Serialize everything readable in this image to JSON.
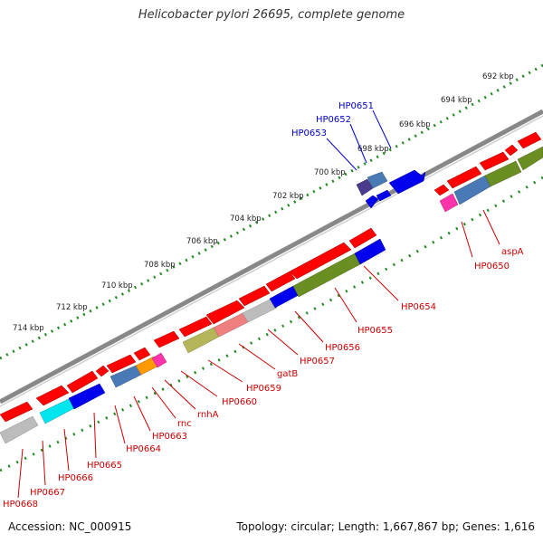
{
  "title": "Helicobacter pylori 26695, complete genome",
  "footer": {
    "accession": "Accession: NC_000915",
    "summary": "Topology: circular; Length: 1,667,867 bp; Genes: 1,616"
  },
  "colors": {
    "ruler": "#228B22",
    "forward": "#ff0000",
    "forward_label": "#cc0000",
    "reverse_label": "#0000cc",
    "backbone": "#888888"
  },
  "ruler": {
    "unit": "kbp",
    "ticks": [
      {
        "kb": 692,
        "label": "692 kbp"
      },
      {
        "kb": 694,
        "label": "694 kbp"
      },
      {
        "kb": 696,
        "label": "696 kbp"
      },
      {
        "kb": 698,
        "label": "698 kbp"
      },
      {
        "kb": 700,
        "label": "700 kbp"
      },
      {
        "kb": 702,
        "label": "702 kbp"
      },
      {
        "kb": 704,
        "label": "704 kbp"
      },
      {
        "kb": 706,
        "label": "706 kbp"
      },
      {
        "kb": 708,
        "label": "708 kbp"
      },
      {
        "kb": 710,
        "label": "710 kbp"
      },
      {
        "kb": 712,
        "label": "712 kbp"
      },
      {
        "kb": 714,
        "label": "714 kbp"
      }
    ]
  },
  "labels": [
    {
      "text": "HP0651",
      "strand": "reverse"
    },
    {
      "text": "HP0652",
      "strand": "reverse"
    },
    {
      "text": "HP0653",
      "strand": "reverse"
    },
    {
      "text": "aspA",
      "strand": "forward"
    },
    {
      "text": "HP0650",
      "strand": "forward"
    },
    {
      "text": "HP0654",
      "strand": "forward"
    },
    {
      "text": "HP0655",
      "strand": "forward"
    },
    {
      "text": "HP0656",
      "strand": "forward"
    },
    {
      "text": "HP0657",
      "strand": "forward"
    },
    {
      "text": "gatB",
      "strand": "forward"
    },
    {
      "text": "HP0659",
      "strand": "forward"
    },
    {
      "text": "HP0660",
      "strand": "forward"
    },
    {
      "text": "rnhA",
      "strand": "forward"
    },
    {
      "text": "rnc",
      "strand": "forward"
    },
    {
      "text": "HP0663",
      "strand": "forward"
    },
    {
      "text": "HP0664",
      "strand": "forward"
    },
    {
      "text": "HP0665",
      "strand": "forward"
    },
    {
      "text": "HP0666",
      "strand": "forward"
    },
    {
      "text": "HP0667",
      "strand": "forward"
    },
    {
      "text": "HP0668",
      "strand": "forward"
    }
  ]
}
